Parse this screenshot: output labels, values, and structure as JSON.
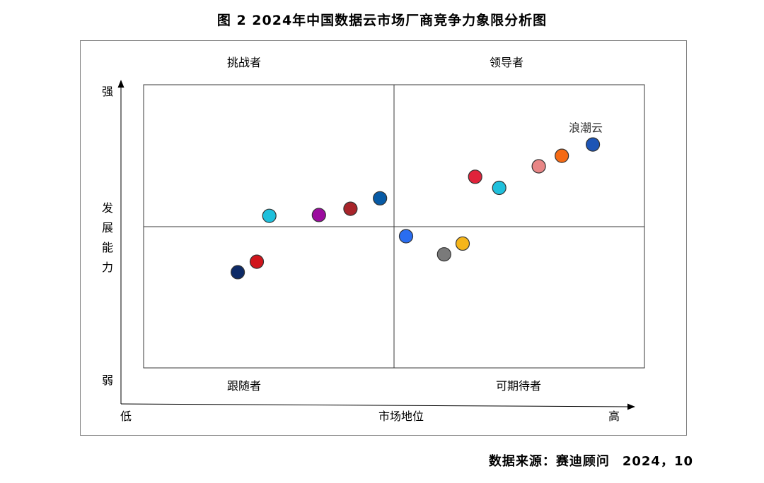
{
  "figure": {
    "title": "图 2  2024年中国数据云市场厂商竞争力象限分析图",
    "source_label": "数据来源：赛迪顾问",
    "source_date": "2024，10"
  },
  "chart_data": {
    "type": "scatter",
    "title": "图 2  2024年中国数据云市场厂商竞争力象限分析图",
    "xlabel": "市场地位",
    "ylabel": "发展能力",
    "x_low_label": "低",
    "x_high_label": "高",
    "y_high_label": "强",
    "y_low_label": "弱",
    "xlim": [
      0,
      100
    ],
    "ylim": [
      0,
      100
    ],
    "grid": false,
    "quadrants": {
      "top_left": "挑战者",
      "top_right": "领导者",
      "bottom_left": "跟随者",
      "bottom_right": "可期待者"
    },
    "points": [
      {
        "x": 18.8,
        "y": 33.8,
        "color": "#0d2a66"
      },
      {
        "x": 22.6,
        "y": 37.5,
        "color": "#d0151c"
      },
      {
        "x": 25.1,
        "y": 53.7,
        "color": "#1fc0dc"
      },
      {
        "x": 35.0,
        "y": 54.0,
        "color": "#9b0b9e"
      },
      {
        "x": 41.3,
        "y": 56.2,
        "color": "#a8242a"
      },
      {
        "x": 47.2,
        "y": 59.9,
        "color": "#075aa5"
      },
      {
        "x": 52.4,
        "y": 46.5,
        "color": "#2a6df0"
      },
      {
        "x": 60.0,
        "y": 40.1,
        "color": "#7a7a7a"
      },
      {
        "x": 63.7,
        "y": 43.9,
        "color": "#f5b51a"
      },
      {
        "x": 66.2,
        "y": 67.5,
        "color": "#e0233b"
      },
      {
        "x": 71.0,
        "y": 63.6,
        "color": "#1fc0dc"
      },
      {
        "x": 78.9,
        "y": 71.2,
        "color": "#e88686"
      },
      {
        "x": 83.5,
        "y": 74.9,
        "color": "#f56a14"
      },
      {
        "x": 89.7,
        "y": 78.9,
        "color": "#1d55b5",
        "label": "浪潮云"
      }
    ]
  }
}
